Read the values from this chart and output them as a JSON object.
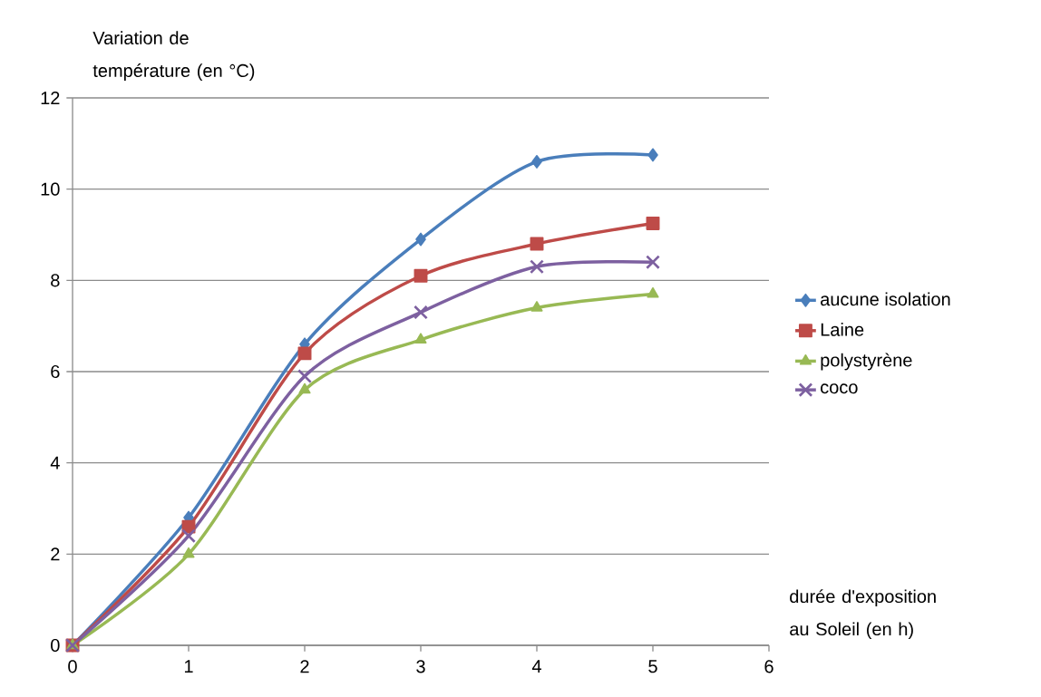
{
  "chart_data": {
    "type": "line",
    "xlabel": "durée d'exposition au Soleil (en h)",
    "ylabel": "Variation de température (en °C)",
    "x": [
      0,
      1,
      2,
      3,
      4,
      5
    ],
    "series": [
      {
        "name": "aucune isolation",
        "color": "#4a7ebb",
        "marker": "diamond",
        "values": [
          0,
          2.8,
          6.6,
          8.9,
          10.6,
          10.75
        ]
      },
      {
        "name": "Laine",
        "color": "#be4b48",
        "marker": "square",
        "values": [
          0,
          2.6,
          6.4,
          8.1,
          8.8,
          9.25
        ]
      },
      {
        "name": "polystyrène",
        "color": "#98b954",
        "marker": "triangle",
        "values": [
          0,
          2.0,
          5.6,
          6.7,
          7.4,
          7.7
        ]
      },
      {
        "name": "coco",
        "color": "#7d60a0",
        "marker": "cross",
        "values": [
          0,
          2.4,
          5.9,
          7.3,
          8.3,
          8.4
        ]
      }
    ],
    "xlim": [
      0,
      6
    ],
    "ylim": [
      0,
      12
    ],
    "xticks": [
      0,
      1,
      2,
      3,
      4,
      5,
      6
    ],
    "yticks": [
      0,
      2,
      4,
      6,
      8,
      10,
      12
    ],
    "grid": "y",
    "legend": "right",
    "line_style": "solid"
  }
}
